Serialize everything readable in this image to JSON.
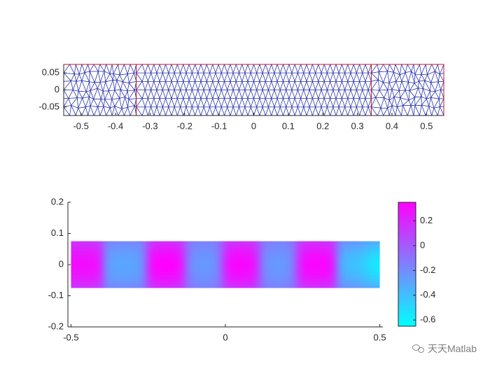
{
  "chart_data": [
    {
      "type": "mesh",
      "xlim": [
        -0.55,
        0.55
      ],
      "ylim": [
        -0.075,
        0.075
      ],
      "x_ticks": [
        "-0.5",
        "-0.4",
        "-0.3",
        "-0.2",
        "-0.1",
        "0",
        "0.1",
        "0.2",
        "0.3",
        "0.4",
        "0.5"
      ],
      "x_tick_values": [
        -0.5,
        -0.4,
        -0.3,
        -0.2,
        -0.1,
        0,
        0.1,
        0.2,
        0.3,
        0.4,
        0.5
      ],
      "y_ticks": [
        "0.05",
        "0",
        "-0.05"
      ],
      "y_tick_values": [
        0.05,
        0,
        -0.05
      ],
      "domain": {
        "x": [
          -0.55,
          0.55
        ],
        "y": [
          -0.075,
          0.075
        ]
      },
      "boundaries_x": [
        -0.55,
        -0.34,
        0.34,
        0.55
      ],
      "colors": {
        "edges": "#1f2aa8",
        "boundary": "#c0142c"
      }
    },
    {
      "type": "heatmap",
      "xlim": [
        -0.51,
        0.51
      ],
      "ylim": [
        -0.2,
        0.2
      ],
      "x_ticks": [
        "-0.5",
        "0",
        "0.5"
      ],
      "x_tick_values": [
        -0.5,
        0,
        0.5
      ],
      "y_ticks": [
        "0.2",
        "0.1",
        "0",
        "-0.1",
        "-0.2"
      ],
      "y_tick_values": [
        0.2,
        0.1,
        0,
        -0.1,
        -0.2
      ],
      "field": {
        "x_range": [
          -0.5,
          0.5
        ],
        "y_range": [
          -0.075,
          0.075
        ],
        "peaks": [
          {
            "x": -0.47,
            "value": 0.3
          },
          {
            "x": -0.32,
            "value": -0.3
          },
          {
            "x": -0.19,
            "value": 0.35
          },
          {
            "x": -0.07,
            "value": -0.25
          },
          {
            "x": 0.05,
            "value": 0.33
          },
          {
            "x": 0.17,
            "value": -0.25
          },
          {
            "x": 0.29,
            "value": 0.33
          },
          {
            "x": 0.43,
            "value": -0.38
          },
          {
            "x": 0.49,
            "value": -0.6
          }
        ]
      },
      "colorbar": {
        "limits": [
          -0.65,
          0.35
        ],
        "ticks": [
          "0.2",
          "0",
          "-0.2",
          "-0.4",
          "-0.6"
        ],
        "tick_values": [
          0.2,
          0,
          -0.2,
          -0.4,
          -0.6
        ],
        "colormap": "cool",
        "colors": {
          "low": "#00ffff",
          "high": "#ff00ff"
        }
      }
    }
  ],
  "watermark": {
    "text": "天天Matlab",
    "icon": "wechat-icon"
  }
}
